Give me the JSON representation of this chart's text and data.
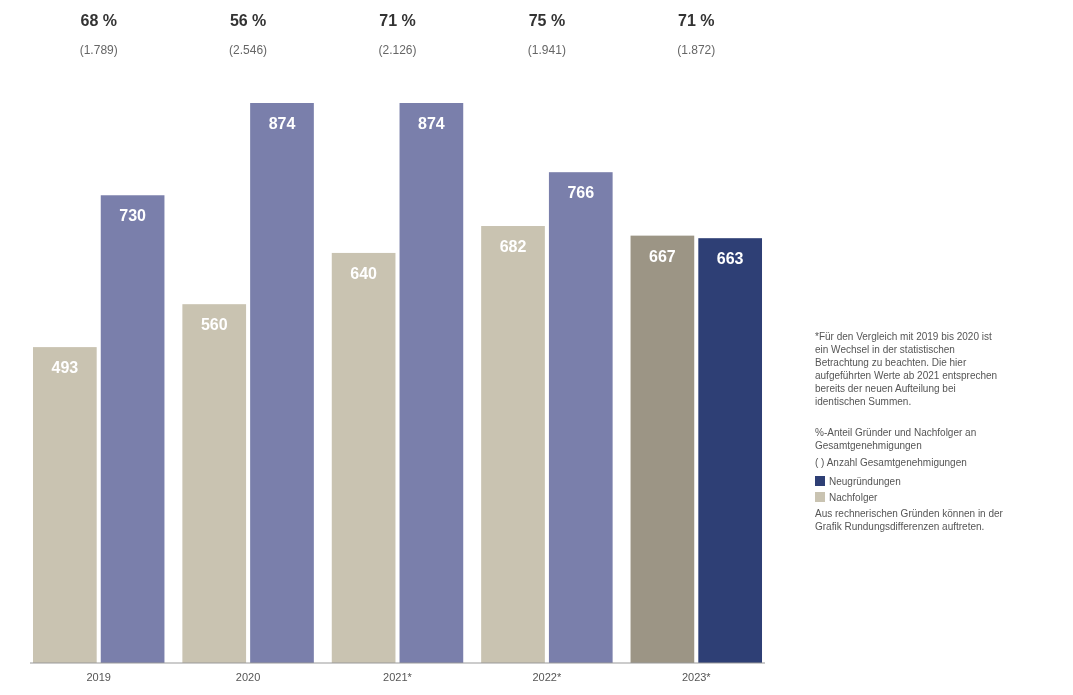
{
  "chart_data": {
    "type": "bar",
    "categories": [
      "2019",
      "2020",
      "2021*",
      "2022*",
      "2023*"
    ],
    "series": [
      {
        "name": "Nachfolger",
        "color": "#c9c3b1",
        "colors": [
          "#c9c3b1",
          "#c9c3b1",
          "#c9c3b1",
          "#c9c3b1",
          "#9c9585"
        ],
        "values": [
          493,
          560,
          640,
          682,
          667
        ]
      },
      {
        "name": "Neugründungen",
        "color": "#2e3f75",
        "colors": [
          "#7a7fab",
          "#7a7fab",
          "#7a7fab",
          "#7a7fab",
          "#2e3f75"
        ],
        "values": [
          730,
          874,
          874,
          766,
          663
        ]
      }
    ],
    "data_labels": true,
    "legend": "right",
    "annotations": [
      "68 %",
      "(1.789)",
      "56 %",
      "(2.546)",
      "71 %",
      "(2.126)",
      "75 %",
      "(1.941)",
      "71 %",
      "(1.872)",
      "*Für den Vergleich mit 2019 bis 2020 ist ein Wechsel in der statistischen Betrachtung zu beachten. Die hier aufgeführten Werte ab 2021 entsprechen bereits der neuen Aufteilung bei identischen Summen.",
      "%-Anteil Gründer und Nachfolger an Gesamtgenehmigungen",
      "( ) Anzahl Gesamtgenehmigungen",
      "Aus rechnerischen Gründen können in der Grafik Rundungsdifferenzen auftreten."
    ]
  }
}
